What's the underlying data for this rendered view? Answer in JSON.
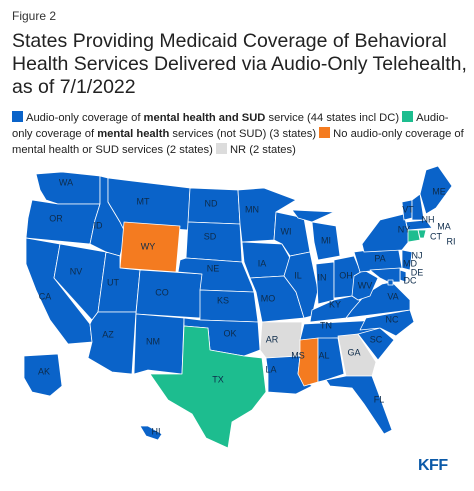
{
  "figure_label": "Figure 2",
  "title": "States Providing Medicaid Coverage of Behavioral Health Services Delivered via Audio-Only Telehealth, as of 7/1/2022",
  "colors": {
    "audio_mh_sud": "#0a63c9",
    "audio_mh_only": "#1dbd8f",
    "no_audio": "#f47b20",
    "nr": "#dcdcdc",
    "border": "#ffffff"
  },
  "legend": [
    {
      "key": "audio_mh_sud",
      "pre": "Audio-only coverage of ",
      "bold": "mental health and SUD",
      "post": " service (44 states incl DC)"
    },
    {
      "key": "audio_mh_only",
      "pre": "Audio-only coverage of ",
      "bold": "mental health",
      "post": " services (not SUD) (3 states)"
    },
    {
      "key": "no_audio",
      "pre": "No audio-only coverage of mental health or SUD services (2 states)",
      "bold": "",
      "post": ""
    },
    {
      "key": "nr",
      "pre": "NR (2 states)",
      "bold": "",
      "post": ""
    }
  ],
  "states": [
    {
      "abbr": "WA",
      "cat": "audio_mh_sud"
    },
    {
      "abbr": "OR",
      "cat": "audio_mh_sud"
    },
    {
      "abbr": "CA",
      "cat": "audio_mh_sud"
    },
    {
      "abbr": "NV",
      "cat": "audio_mh_sud"
    },
    {
      "abbr": "ID",
      "cat": "audio_mh_sud"
    },
    {
      "abbr": "MT",
      "cat": "audio_mh_sud"
    },
    {
      "abbr": "WY",
      "cat": "no_audio"
    },
    {
      "abbr": "UT",
      "cat": "audio_mh_sud"
    },
    {
      "abbr": "AZ",
      "cat": "audio_mh_sud"
    },
    {
      "abbr": "CO",
      "cat": "audio_mh_sud"
    },
    {
      "abbr": "NM",
      "cat": "audio_mh_sud"
    },
    {
      "abbr": "ND",
      "cat": "audio_mh_sud"
    },
    {
      "abbr": "SD",
      "cat": "audio_mh_sud"
    },
    {
      "abbr": "NE",
      "cat": "audio_mh_sud"
    },
    {
      "abbr": "KS",
      "cat": "audio_mh_sud"
    },
    {
      "abbr": "OK",
      "cat": "audio_mh_sud"
    },
    {
      "abbr": "TX",
      "cat": "audio_mh_only"
    },
    {
      "abbr": "MN",
      "cat": "audio_mh_sud"
    },
    {
      "abbr": "IA",
      "cat": "audio_mh_sud"
    },
    {
      "abbr": "MO",
      "cat": "audio_mh_sud"
    },
    {
      "abbr": "AR",
      "cat": "nr"
    },
    {
      "abbr": "LA",
      "cat": "audio_mh_sud"
    },
    {
      "abbr": "WI",
      "cat": "audio_mh_sud"
    },
    {
      "abbr": "IL",
      "cat": "audio_mh_sud"
    },
    {
      "abbr": "MI",
      "cat": "audio_mh_sud"
    },
    {
      "abbr": "IN",
      "cat": "audio_mh_sud"
    },
    {
      "abbr": "OH",
      "cat": "audio_mh_sud"
    },
    {
      "abbr": "KY",
      "cat": "audio_mh_sud"
    },
    {
      "abbr": "TN",
      "cat": "audio_mh_sud"
    },
    {
      "abbr": "MS",
      "cat": "no_audio"
    },
    {
      "abbr": "AL",
      "cat": "audio_mh_sud"
    },
    {
      "abbr": "GA",
      "cat": "nr"
    },
    {
      "abbr": "FL",
      "cat": "audio_mh_sud"
    },
    {
      "abbr": "SC",
      "cat": "audio_mh_sud"
    },
    {
      "abbr": "NC",
      "cat": "audio_mh_sud"
    },
    {
      "abbr": "VA",
      "cat": "audio_mh_sud"
    },
    {
      "abbr": "WV",
      "cat": "audio_mh_sud"
    },
    {
      "abbr": "PA",
      "cat": "audio_mh_sud"
    },
    {
      "abbr": "NY",
      "cat": "audio_mh_sud"
    },
    {
      "abbr": "VT",
      "cat": "audio_mh_sud"
    },
    {
      "abbr": "NH",
      "cat": "audio_mh_sud"
    },
    {
      "abbr": "ME",
      "cat": "audio_mh_sud"
    },
    {
      "abbr": "MA",
      "cat": "audio_mh_sud"
    },
    {
      "abbr": "RI",
      "cat": "audio_mh_only"
    },
    {
      "abbr": "CT",
      "cat": "audio_mh_only"
    },
    {
      "abbr": "NJ",
      "cat": "audio_mh_sud"
    },
    {
      "abbr": "DE",
      "cat": "audio_mh_sud"
    },
    {
      "abbr": "MD",
      "cat": "audio_mh_sud"
    },
    {
      "abbr": "DC",
      "cat": "audio_mh_sud"
    },
    {
      "abbr": "AK",
      "cat": "audio_mh_sud"
    },
    {
      "abbr": "HI",
      "cat": "audio_mh_sud"
    }
  ],
  "logo": "KFF"
}
